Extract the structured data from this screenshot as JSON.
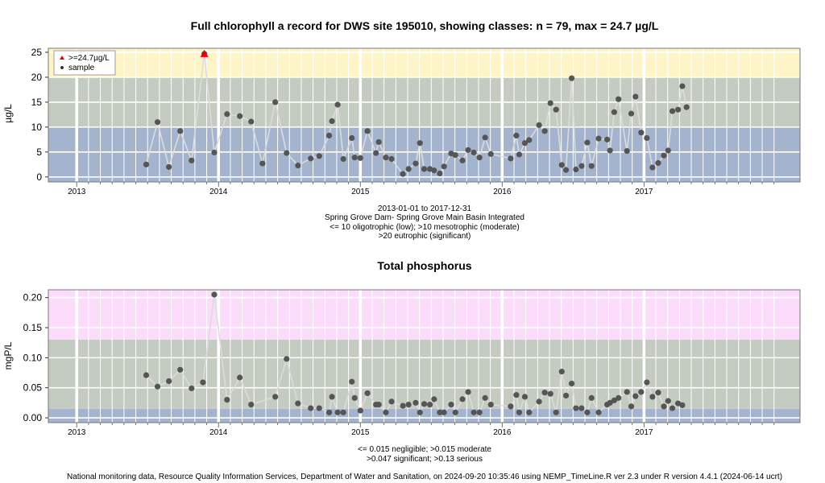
{
  "chart_data": [
    {
      "type": "scatter",
      "title": "Full chlorophyll a record for DWS site 195010, showing classes: n = 79, max = 24.7 µg/L",
      "ylabel": "µg/L",
      "xlim": [
        2012.8,
        2018.1
      ],
      "ylim": [
        -1,
        25.8
      ],
      "x_tick_labels": [
        "2013",
        "2014",
        "2015",
        "2016",
        "2017"
      ],
      "y_tick_labels": [
        "0",
        "5",
        "10",
        "15",
        "20",
        "25"
      ],
      "y_ticks": [
        0,
        5,
        10,
        15,
        20,
        25
      ],
      "bands": [
        {
          "from": -1,
          "to": 10,
          "color": "#a4b4cf"
        },
        {
          "from": 10,
          "to": 20,
          "color": "#c4cbc0"
        },
        {
          "from": 20,
          "to": 25.8,
          "color": "#fdf5c8"
        }
      ],
      "legend": {
        "position": "top-left",
        "entries": [
          ">=24.7µg/L",
          "sample"
        ]
      },
      "subtitle_lines": [
        "2013-01-01 to 2017-12-31",
        "Spring Grove Dam- Spring Grove Main Basin Integrated",
        "<= 10 oligotrophic (low); >10 mesotrophic (moderate)",
        ">20 eutrophic (significant)"
      ],
      "highlight": {
        "x": 2013.9,
        "y": 24.7,
        "color": "#e8000d"
      },
      "points": [
        [
          2013.49,
          2.5
        ],
        [
          2013.57,
          11.0
        ],
        [
          2013.65,
          2.0
        ],
        [
          2013.73,
          9.2
        ],
        [
          2013.81,
          3.3
        ],
        [
          2013.9,
          24.7
        ],
        [
          2013.97,
          4.9
        ],
        [
          2014.06,
          12.6
        ],
        [
          2014.15,
          12.2
        ],
        [
          2014.23,
          11.1
        ],
        [
          2014.31,
          2.7
        ],
        [
          2014.4,
          15.0
        ],
        [
          2014.48,
          4.8
        ],
        [
          2014.56,
          2.3
        ],
        [
          2014.65,
          3.7
        ],
        [
          2014.71,
          4.2
        ],
        [
          2014.78,
          8.3
        ],
        [
          2014.8,
          11.2
        ],
        [
          2014.84,
          14.5
        ],
        [
          2014.88,
          3.6
        ],
        [
          2014.94,
          7.8
        ],
        [
          2014.96,
          3.9
        ],
        [
          2015.0,
          3.8
        ],
        [
          2015.05,
          9.2
        ],
        [
          2015.11,
          4.8
        ],
        [
          2015.13,
          7.0
        ],
        [
          2015.18,
          3.9
        ],
        [
          2015.22,
          3.6
        ],
        [
          2015.3,
          0.6
        ],
        [
          2015.34,
          1.6
        ],
        [
          2015.39,
          2.7
        ],
        [
          2015.42,
          6.8
        ],
        [
          2015.45,
          1.6
        ],
        [
          2015.49,
          1.6
        ],
        [
          2015.52,
          1.3
        ],
        [
          2015.56,
          0.7
        ],
        [
          2015.59,
          2.1
        ],
        [
          2015.64,
          4.7
        ],
        [
          2015.67,
          4.4
        ],
        [
          2015.72,
          3.3
        ],
        [
          2015.76,
          5.4
        ],
        [
          2015.8,
          4.9
        ],
        [
          2015.84,
          3.9
        ],
        [
          2015.88,
          7.9
        ],
        [
          2015.92,
          4.6
        ],
        [
          2016.06,
          3.7
        ],
        [
          2016.1,
          8.3
        ],
        [
          2016.12,
          4.5
        ],
        [
          2016.16,
          6.8
        ],
        [
          2016.19,
          7.4
        ],
        [
          2016.26,
          10.4
        ],
        [
          2016.3,
          9.2
        ],
        [
          2016.34,
          14.8
        ],
        [
          2016.38,
          13.5
        ],
        [
          2016.42,
          2.4
        ],
        [
          2016.45,
          1.4
        ],
        [
          2016.49,
          19.8
        ],
        [
          2016.52,
          1.5
        ],
        [
          2016.56,
          2.2
        ],
        [
          2016.6,
          6.9
        ],
        [
          2016.63,
          2.2
        ],
        [
          2016.68,
          7.7
        ],
        [
          2016.74,
          7.5
        ],
        [
          2016.76,
          5.3
        ],
        [
          2016.79,
          13.0
        ],
        [
          2016.82,
          15.6
        ],
        [
          2016.88,
          5.2
        ],
        [
          2016.91,
          12.7
        ],
        [
          2016.94,
          16.1
        ],
        [
          2016.98,
          8.9
        ],
        [
          2017.02,
          7.8
        ],
        [
          2017.06,
          1.9
        ],
        [
          2017.1,
          2.8
        ],
        [
          2017.14,
          4.3
        ],
        [
          2017.17,
          5.3
        ],
        [
          2017.2,
          13.2
        ],
        [
          2017.24,
          13.5
        ],
        [
          2017.27,
          18.2
        ],
        [
          2017.3,
          14.0
        ]
      ]
    },
    {
      "type": "scatter",
      "title": "Total phosphorus",
      "ylabel": "mgP/L",
      "xlim": [
        2012.8,
        2018.1
      ],
      "ylim": [
        -0.008,
        0.213
      ],
      "x_tick_labels": [
        "2013",
        "2014",
        "2015",
        "2016",
        "2017"
      ],
      "y_tick_labels": [
        "0.00",
        "0.05",
        "0.10",
        "0.15",
        "0.20"
      ],
      "y_ticks": [
        0,
        0.05,
        0.1,
        0.15,
        0.2
      ],
      "bands": [
        {
          "from": -0.008,
          "to": 0.015,
          "color": "#a4b4cf"
        },
        {
          "from": 0.015,
          "to": 0.13,
          "color": "#c4cbc0"
        },
        {
          "from": 0.13,
          "to": 0.213,
          "color": "#fcdcfb"
        }
      ],
      "subtitle_lines": [
        "<= 0.015 negligible; >0.015 moderate",
        ">0.047 significant; >0.13 serious"
      ],
      "points": [
        [
          2013.49,
          0.071
        ],
        [
          2013.57,
          0.052
        ],
        [
          2013.65,
          0.061
        ],
        [
          2013.73,
          0.08
        ],
        [
          2013.81,
          0.049
        ],
        [
          2013.89,
          0.059
        ],
        [
          2013.97,
          0.205
        ],
        [
          2014.06,
          0.03
        ],
        [
          2014.15,
          0.067
        ],
        [
          2014.23,
          0.022
        ],
        [
          2014.4,
          0.035
        ],
        [
          2014.48,
          0.098
        ],
        [
          2014.56,
          0.024
        ],
        [
          2014.65,
          0.016
        ],
        [
          2014.71,
          0.016
        ],
        [
          2014.78,
          0.009
        ],
        [
          2014.8,
          0.035
        ],
        [
          2014.84,
          0.009
        ],
        [
          2014.88,
          0.009
        ],
        [
          2014.94,
          0.06
        ],
        [
          2014.96,
          0.033
        ],
        [
          2015.0,
          0.012
        ],
        [
          2015.05,
          0.041
        ],
        [
          2015.11,
          0.022
        ],
        [
          2015.13,
          0.022
        ],
        [
          2015.18,
          0.009
        ],
        [
          2015.22,
          0.027
        ],
        [
          2015.3,
          0.02
        ],
        [
          2015.34,
          0.022
        ],
        [
          2015.39,
          0.025
        ],
        [
          2015.42,
          0.009
        ],
        [
          2015.45,
          0.023
        ],
        [
          2015.49,
          0.022
        ],
        [
          2015.52,
          0.031
        ],
        [
          2015.56,
          0.009
        ],
        [
          2015.59,
          0.009
        ],
        [
          2015.64,
          0.022
        ],
        [
          2015.67,
          0.009
        ],
        [
          2015.72,
          0.031
        ],
        [
          2015.76,
          0.043
        ],
        [
          2015.8,
          0.009
        ],
        [
          2015.84,
          0.009
        ],
        [
          2015.88,
          0.033
        ],
        [
          2015.92,
          0.022
        ],
        [
          2016.06,
          0.019
        ],
        [
          2016.1,
          0.038
        ],
        [
          2016.12,
          0.009
        ],
        [
          2016.16,
          0.035
        ],
        [
          2016.19,
          0.009
        ],
        [
          2016.26,
          0.027
        ],
        [
          2016.3,
          0.042
        ],
        [
          2016.34,
          0.04
        ],
        [
          2016.38,
          0.009
        ],
        [
          2016.42,
          0.077
        ],
        [
          2016.45,
          0.037
        ],
        [
          2016.49,
          0.057
        ],
        [
          2016.52,
          0.016
        ],
        [
          2016.56,
          0.016
        ],
        [
          2016.6,
          0.009
        ],
        [
          2016.63,
          0.033
        ],
        [
          2016.68,
          0.009
        ],
        [
          2016.74,
          0.022
        ],
        [
          2016.76,
          0.025
        ],
        [
          2016.79,
          0.029
        ],
        [
          2016.82,
          0.033
        ],
        [
          2016.88,
          0.043
        ],
        [
          2016.91,
          0.019
        ],
        [
          2016.94,
          0.036
        ],
        [
          2016.98,
          0.043
        ],
        [
          2017.02,
          0.059
        ],
        [
          2017.06,
          0.035
        ],
        [
          2017.1,
          0.042
        ],
        [
          2017.14,
          0.019
        ],
        [
          2017.17,
          0.028
        ],
        [
          2017.2,
          0.016
        ],
        [
          2017.24,
          0.024
        ],
        [
          2017.27,
          0.021
        ]
      ]
    }
  ],
  "footer": "National monitoring data, Resource Quality Information Services, Department of Water and Sanitation, on 2024-09-20 10:35:46 using NEMP_TimeLine.R ver 2.3 under R version 4.4.1 (2024-06-14 ucrt)"
}
